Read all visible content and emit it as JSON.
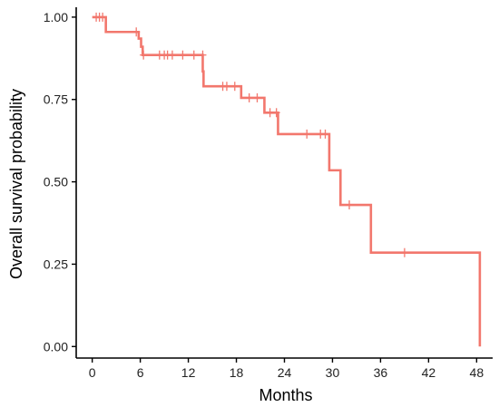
{
  "chart_data": {
    "type": "line",
    "title": "",
    "xlabel": "Months",
    "ylabel": "Overall survival probability",
    "xlim": [
      -2,
      50
    ],
    "ylim": [
      -0.035,
      1.03
    ],
    "x_ticks": [
      0,
      6,
      12,
      18,
      24,
      30,
      36,
      42,
      48
    ],
    "y_ticks": [
      0.0,
      0.25,
      0.5,
      0.75,
      1.0
    ],
    "y_tick_labels": [
      "0.00",
      "0.25",
      "0.50",
      "0.75",
      "1.00"
    ],
    "grid": false,
    "legend": "none",
    "colors": {
      "series": "#F2776D",
      "axis": "#000000"
    },
    "series": [
      {
        "steps": [
          {
            "x": 0,
            "y": 1.0
          },
          {
            "x": 1.7,
            "y": 0.955
          },
          {
            "x": 5.8,
            "y": 0.935
          },
          {
            "x": 6.1,
            "y": 0.91
          },
          {
            "x": 6.3,
            "y": 0.885
          },
          {
            "x": 13.8,
            "y": 0.835
          },
          {
            "x": 13.9,
            "y": 0.79
          },
          {
            "x": 18.6,
            "y": 0.755
          },
          {
            "x": 21.5,
            "y": 0.71
          },
          {
            "x": 23.2,
            "y": 0.645
          },
          {
            "x": 29.6,
            "y": 0.535
          },
          {
            "x": 31.0,
            "y": 0.43
          },
          {
            "x": 34.8,
            "y": 0.285
          },
          {
            "x": 48.4,
            "y": 0.0
          }
        ],
        "end_x": 48.4,
        "censor_marks": [
          {
            "x": 0.5,
            "y": 1.0
          },
          {
            "x": 0.9,
            "y": 1.0
          },
          {
            "x": 1.3,
            "y": 1.0
          },
          {
            "x": 5.5,
            "y": 0.955
          },
          {
            "x": 6.4,
            "y": 0.885
          },
          {
            "x": 8.4,
            "y": 0.885
          },
          {
            "x": 9.0,
            "y": 0.885
          },
          {
            "x": 9.4,
            "y": 0.885
          },
          {
            "x": 10.0,
            "y": 0.885
          },
          {
            "x": 11.3,
            "y": 0.885
          },
          {
            "x": 12.7,
            "y": 0.885
          },
          {
            "x": 13.8,
            "y": 0.885
          },
          {
            "x": 16.3,
            "y": 0.79
          },
          {
            "x": 16.8,
            "y": 0.79
          },
          {
            "x": 17.8,
            "y": 0.79
          },
          {
            "x": 19.6,
            "y": 0.755
          },
          {
            "x": 20.6,
            "y": 0.755
          },
          {
            "x": 22.2,
            "y": 0.71
          },
          {
            "x": 23.0,
            "y": 0.71
          },
          {
            "x": 26.8,
            "y": 0.645
          },
          {
            "x": 28.5,
            "y": 0.645
          },
          {
            "x": 29.1,
            "y": 0.645
          },
          {
            "x": 32.1,
            "y": 0.43
          },
          {
            "x": 39.0,
            "y": 0.285
          }
        ]
      }
    ]
  }
}
